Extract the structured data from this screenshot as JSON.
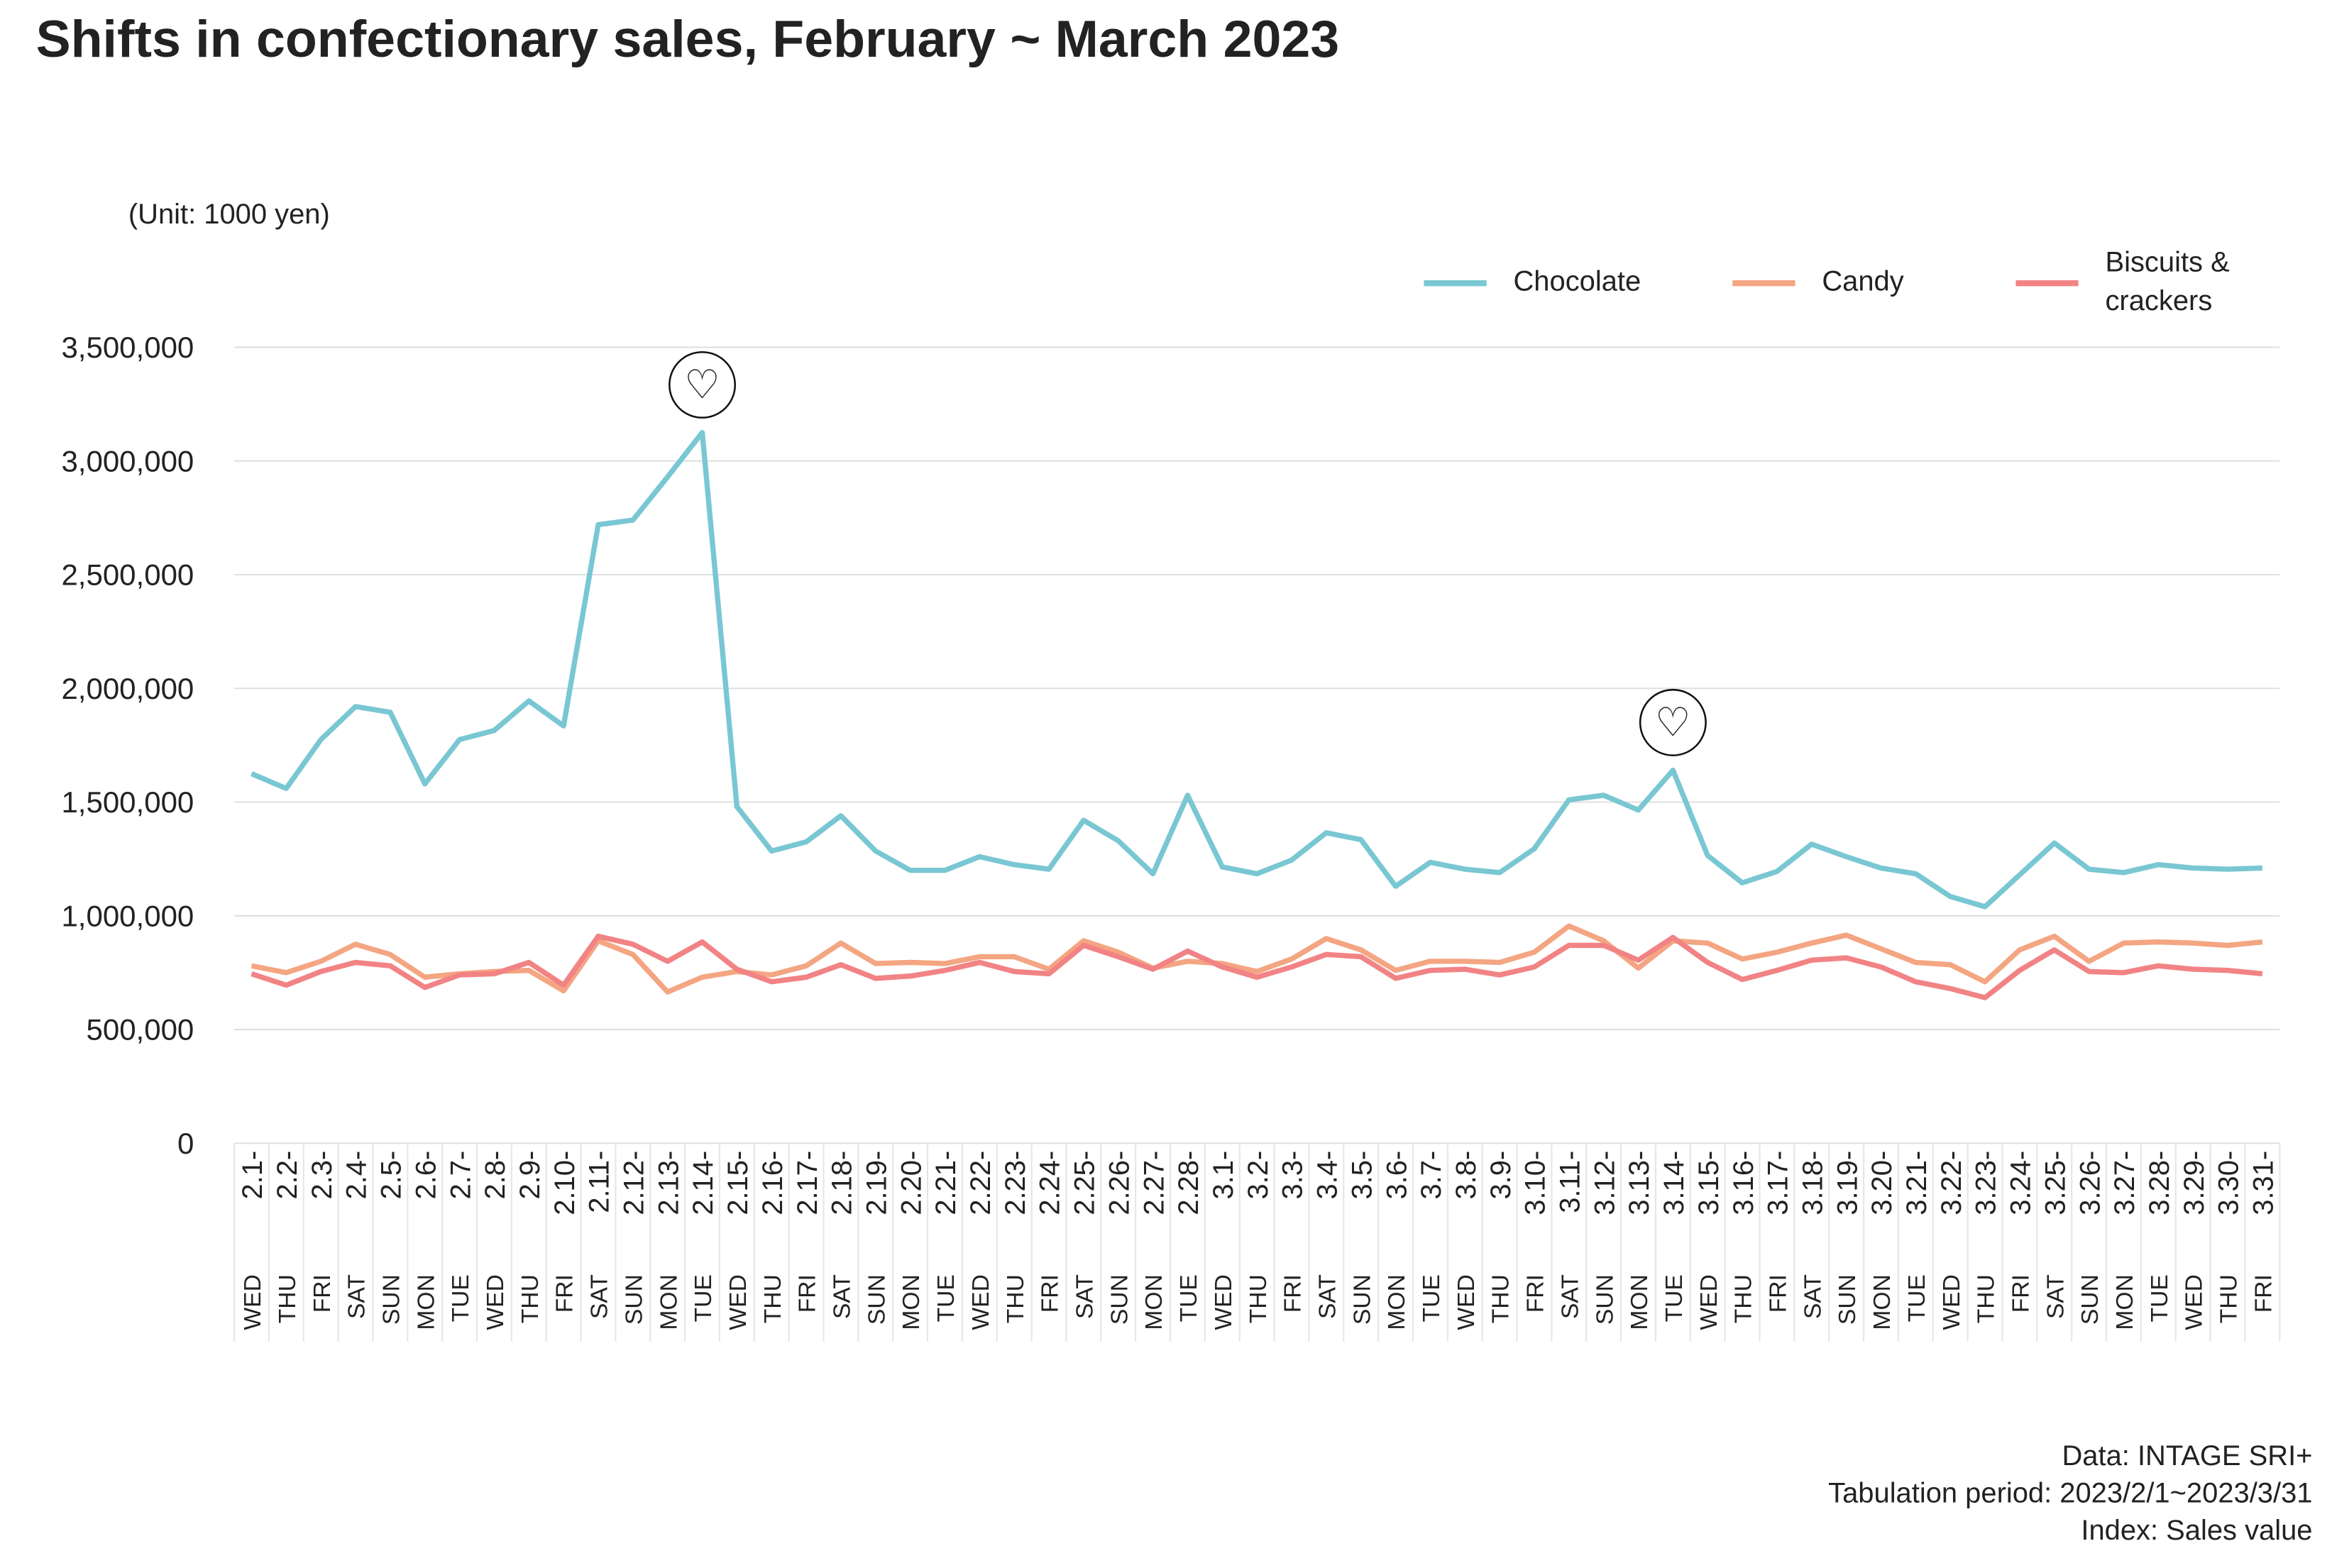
{
  "chart_data": {
    "type": "line",
    "title": "Shifts in confectionary sales, February ~ March 2023",
    "unit_label": "(Unit: 1000 yen)",
    "source_lines": [
      "Data: INTAGE SRI+",
      "Tabulation period: 2023/2/1~2023/3/31",
      "Index: Sales value"
    ],
    "categories": [
      "2.1-",
      "2.2-",
      "2.3-",
      "2.4-",
      "2.5-",
      "2.6-",
      "2.7-",
      "2.8-",
      "2.9-",
      "2.10-",
      "2.11-",
      "2.12-",
      "2.13-",
      "2.14-",
      "2.15-",
      "2.16-",
      "2.17-",
      "2.18-",
      "2.19-",
      "2.20-",
      "2.21-",
      "2.22-",
      "2.23-",
      "2.24-",
      "2.25-",
      "2.26-",
      "2.27-",
      "2.28-",
      "3.1-",
      "3.2-",
      "3.3-",
      "3.4-",
      "3.5-",
      "3.6-",
      "3.7-",
      "3.8-",
      "3.9-",
      "3.10-",
      "3.11-",
      "3.12-",
      "3.13-",
      "3.14-",
      "3.15-",
      "3.16-",
      "3.17-",
      "3.18-",
      "3.19-",
      "3.20-",
      "3.21-",
      "3.22-",
      "3.23-",
      "3.24-",
      "3.25-",
      "3.26-",
      "3.27-",
      "3.28-",
      "3.29-",
      "3.30-",
      "3.31-"
    ],
    "weekdays": [
      "WED",
      "THU",
      "FRI",
      "SAT",
      "SUN",
      "MON",
      "TUE",
      "WED",
      "THU",
      "FRI",
      "SAT",
      "SUN",
      "MON",
      "TUE",
      "WED",
      "THU",
      "FRI",
      "SAT",
      "SUN",
      "MON",
      "TUE",
      "WED",
      "THU",
      "FRI",
      "SAT",
      "SUN",
      "MON",
      "TUE",
      "WED",
      "THU",
      "FRI",
      "SAT",
      "SUN",
      "MON",
      "TUE",
      "WED",
      "THU",
      "FRI",
      "SAT",
      "SUN",
      "MON",
      "TUE",
      "WED",
      "THU",
      "FRI",
      "SAT",
      "SUN",
      "MON",
      "TUE",
      "WED",
      "THU",
      "FRI",
      "SAT",
      "SUN",
      "MON",
      "TUE",
      "WED",
      "THU",
      "FRI"
    ],
    "series": [
      {
        "name": "Chocolate",
        "color": "#79c7d3",
        "values": [
          1625000,
          1560000,
          1775000,
          1920000,
          1895000,
          1580000,
          1775000,
          1815000,
          1945000,
          1835000,
          2720000,
          2740000,
          2930000,
          3125000,
          1480000,
          1285000,
          1325000,
          1440000,
          1285000,
          1200000,
          1200000,
          1260000,
          1225000,
          1205000,
          1420000,
          1330000,
          1185000,
          1530000,
          1215000,
          1185000,
          1245000,
          1365000,
          1335000,
          1130000,
          1235000,
          1205000,
          1190000,
          1295000,
          1510000,
          1530000,
          1465000,
          1640000,
          1265000,
          1145000,
          1195000,
          1315000,
          1260000,
          1210000,
          1185000,
          1085000,
          1040000,
          1180000,
          1320000,
          1205000,
          1190000,
          1225000,
          1210000,
          1205000,
          1210000
        ]
      },
      {
        "name": "Candy",
        "color": "#f4a582",
        "values": [
          780000,
          750000,
          800000,
          875000,
          830000,
          730000,
          745000,
          755000,
          760000,
          670000,
          890000,
          830000,
          665000,
          730000,
          755000,
          740000,
          780000,
          880000,
          790000,
          795000,
          790000,
          820000,
          820000,
          765000,
          890000,
          840000,
          770000,
          800000,
          790000,
          755000,
          810000,
          900000,
          850000,
          760000,
          800000,
          800000,
          795000,
          840000,
          955000,
          890000,
          770000,
          890000,
          880000,
          810000,
          840000,
          880000,
          915000,
          855000,
          795000,
          785000,
          710000,
          850000,
          910000,
          800000,
          880000,
          885000,
          880000,
          870000,
          885000
        ]
      },
      {
        "name": "Biscuits & crackers",
        "color": "#f28385",
        "values": [
          745000,
          695000,
          755000,
          795000,
          780000,
          685000,
          740000,
          745000,
          795000,
          695000,
          910000,
          875000,
          800000,
          885000,
          765000,
          710000,
          730000,
          785000,
          725000,
          735000,
          760000,
          795000,
          755000,
          745000,
          870000,
          820000,
          765000,
          845000,
          775000,
          730000,
          775000,
          830000,
          820000,
          725000,
          760000,
          765000,
          740000,
          775000,
          870000,
          870000,
          805000,
          905000,
          795000,
          720000,
          760000,
          805000,
          815000,
          775000,
          710000,
          680000,
          640000,
          760000,
          850000,
          755000,
          750000,
          780000,
          765000,
          760000,
          745000
        ]
      }
    ],
    "ylim": [
      0,
      3500000
    ],
    "yticks": [
      0,
      {
        "value": 500000,
        "label": "500,000"
      },
      {
        "value": 1000000,
        "label": "1,000,000"
      },
      {
        "value": 1500000,
        "label": "1,500,000"
      },
      {
        "value": 2000000,
        "label": "2,000,000"
      },
      {
        "value": 2500000,
        "label": "2,500,000"
      },
      {
        "value": 3000000,
        "label": "3,000,000"
      },
      {
        "value": 3500000,
        "label": "3,500,000"
      }
    ],
    "grid": true,
    "legend": "top-right",
    "annotations": [
      {
        "label": "♡",
        "x": "2.14-"
      },
      {
        "label": "♡",
        "x": "3.14-"
      }
    ]
  }
}
